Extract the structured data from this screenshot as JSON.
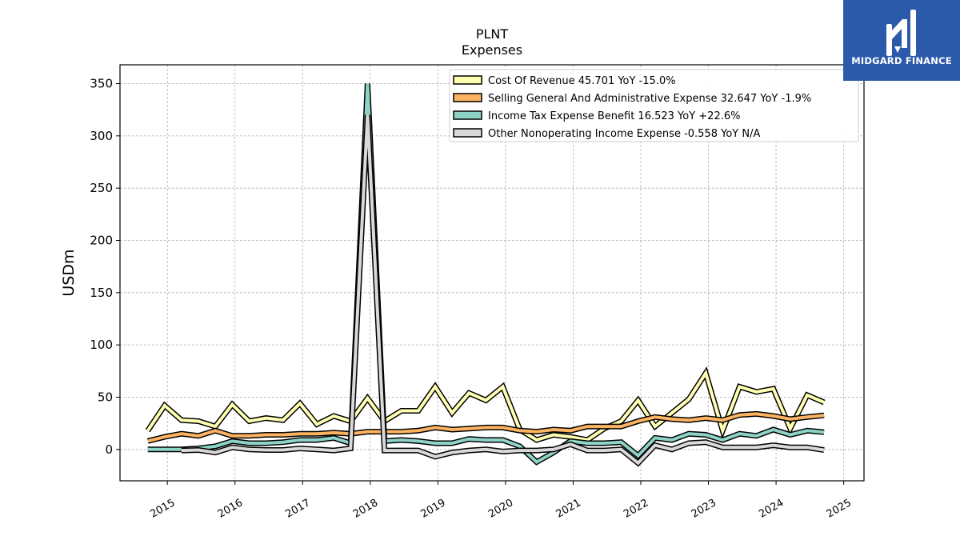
{
  "brand": {
    "name": "MIDGARD FINANCE",
    "color": "#2b5aab"
  },
  "chart_data": {
    "type": "line",
    "title": "PLNT",
    "subtitle": "Expenses",
    "ylabel": "USDm",
    "xlabel": "",
    "ylim": [
      -30,
      368
    ],
    "xlim": [
      2014.3,
      2025.3
    ],
    "yticks": [
      0,
      50,
      100,
      150,
      200,
      250,
      300,
      350
    ],
    "xticks": [
      "2015",
      "2016",
      "2017",
      "2018",
      "2019",
      "2020",
      "2021",
      "2022",
      "2023",
      "2024",
      "2025"
    ],
    "grid": true,
    "legend_position": "top-right",
    "series": [
      {
        "name": "Cost Of Revenue  45.701 YoY -15.0%",
        "color": "#ffffb3",
        "x": [
          2014.71,
          2014.96,
          2015.21,
          2015.46,
          2015.71,
          2015.96,
          2016.21,
          2016.46,
          2016.71,
          2016.96,
          2017.21,
          2017.46,
          2017.71,
          2017.96,
          2018.21,
          2018.46,
          2018.71,
          2018.96,
          2019.21,
          2019.46,
          2019.71,
          2019.96,
          2020.21,
          2020.46,
          2020.71,
          2020.96,
          2021.21,
          2021.46,
          2021.71,
          2021.96,
          2022.21,
          2022.46,
          2022.71,
          2022.96,
          2023.21,
          2023.46,
          2023.71,
          2023.96,
          2024.21,
          2024.46,
          2024.71
        ],
        "y": [
          18,
          42,
          28,
          27,
          22,
          43,
          27,
          30,
          28,
          44,
          24,
          32,
          27,
          49,
          27,
          37,
          37,
          60,
          35,
          54,
          47,
          60,
          19,
          9,
          14,
          12,
          9,
          20,
          27,
          47,
          22,
          35,
          48,
          73,
          18,
          60,
          55,
          58,
          20,
          52,
          45
        ]
      },
      {
        "name": "Selling General And Administrative Expense  32.647 YoY -1.9%",
        "color": "#fdb462",
        "x": [
          2014.71,
          2014.96,
          2015.21,
          2015.46,
          2015.71,
          2015.96,
          2016.21,
          2016.46,
          2016.71,
          2016.96,
          2017.21,
          2017.46,
          2017.71,
          2017.96,
          2018.21,
          2018.46,
          2018.71,
          2018.96,
          2019.21,
          2019.46,
          2019.71,
          2019.96,
          2020.21,
          2020.46,
          2020.71,
          2020.96,
          2021.21,
          2021.46,
          2021.71,
          2021.96,
          2022.21,
          2022.46,
          2022.71,
          2022.96,
          2023.21,
          2023.46,
          2023.71,
          2023.96,
          2024.21,
          2024.46,
          2024.71
        ],
        "y": [
          8,
          12,
          15,
          13,
          18,
          13,
          13,
          14,
          14,
          15,
          15,
          16,
          15,
          17,
          17,
          17,
          18,
          21,
          19,
          20,
          21,
          21,
          18,
          17,
          19,
          18,
          22,
          22,
          22,
          27,
          31,
          29,
          28,
          30,
          28,
          33,
          34,
          32,
          29,
          31,
          32.6
        ]
      },
      {
        "name": "Income Tax Expense Benefit  16.523 YoY +22.6%",
        "color": "#8dd3c7",
        "x": [
          2014.71,
          2014.96,
          2015.21,
          2015.46,
          2015.71,
          2015.96,
          2016.21,
          2016.46,
          2016.71,
          2016.96,
          2017.21,
          2017.46,
          2017.71,
          2017.96,
          2018.21,
          2018.46,
          2018.71,
          2018.96,
          2019.21,
          2019.46,
          2019.71,
          2019.96,
          2020.21,
          2020.46,
          2020.71,
          2020.96,
          2021.21,
          2021.46,
          2021.71,
          2021.96,
          2022.21,
          2022.46,
          2022.71,
          2022.96,
          2023.21,
          2023.46,
          2023.71,
          2023.96,
          2024.21,
          2024.46,
          2024.71
        ],
        "y": [
          0,
          0,
          0,
          1,
          3,
          8,
          6,
          6,
          7,
          9,
          9,
          11,
          6,
          350,
          8,
          9,
          8,
          6,
          6,
          10,
          9,
          9,
          3,
          -12,
          -3,
          8,
          6,
          6,
          7,
          -6,
          11,
          9,
          15,
          14,
          9,
          15,
          13,
          19,
          14,
          18,
          16.5
        ]
      },
      {
        "name": "Other Nonoperating Income Expense  -0.558 YoY N/A",
        "color": "#d9d9d9",
        "x": [
          2015.21,
          2015.46,
          2015.71,
          2015.96,
          2016.21,
          2016.46,
          2016.71,
          2016.96,
          2017.21,
          2017.46,
          2017.71,
          2017.96,
          2018.21,
          2018.46,
          2018.71,
          2018.96,
          2019.21,
          2019.46,
          2019.71,
          2019.96,
          2020.21,
          2020.46,
          2020.71,
          2020.96,
          2021.21,
          2021.46,
          2021.71,
          2021.96,
          2022.21,
          2022.46,
          2022.71,
          2022.96,
          2023.21,
          2023.46,
          2023.71,
          2023.96,
          2024.21,
          2024.46,
          2024.71
        ],
        "y": [
          -1,
          -0.5,
          -3,
          2,
          0,
          -0.5,
          -0.5,
          1,
          0,
          -1,
          1,
          320,
          -1,
          -1,
          -1,
          -7,
          -3,
          -1,
          0,
          -2,
          -1,
          -1,
          0,
          5,
          -1,
          -1,
          0,
          -13,
          4,
          0,
          6,
          7,
          2,
          2,
          2,
          4,
          2,
          2,
          -0.6
        ]
      }
    ]
  }
}
